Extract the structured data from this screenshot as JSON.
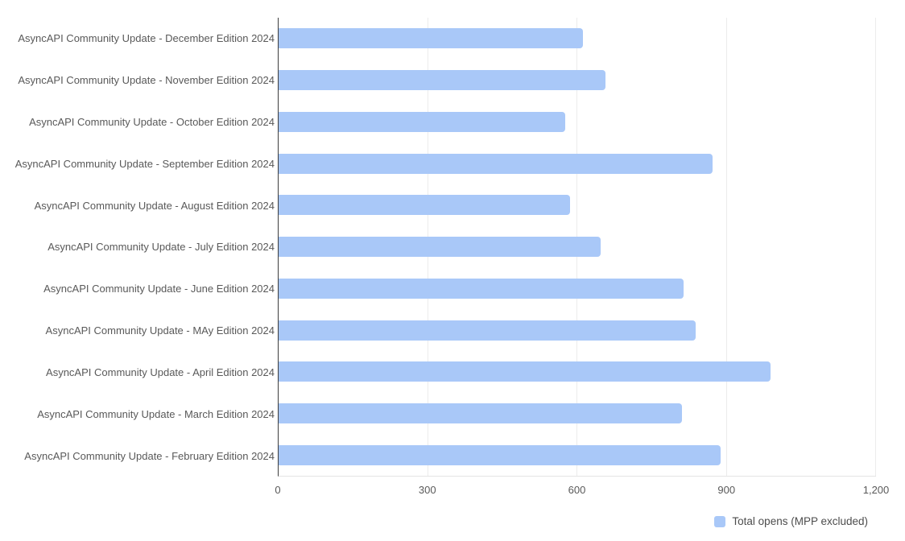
{
  "chart_data": {
    "type": "bar",
    "orientation": "horizontal",
    "title": "",
    "xlabel": "",
    "ylabel": "",
    "categories": [
      "AsyncAPI Community Update - December Edition 2024",
      "AsyncAPI Community Update - November Edition 2024",
      "AsyncAPI Community Update - October Edition 2024",
      "AsyncAPI Community Update - September Edition 2024",
      "AsyncAPI Community Update - August Edition 2024",
      "AsyncAPI Community Update - July Edition 2024",
      "AsyncAPI Community Update - June Edition 2024",
      "AsyncAPI Community Update - MAy Edition 2024",
      "AsyncAPI Community Update - April Edition 2024",
      "AsyncAPI Community Update - March Edition 2024",
      "AsyncAPI Community Update - February Edition 2024"
    ],
    "series": [
      {
        "name": "Total opens (MPP excluded)",
        "values": [
          612,
          657,
          576,
          872,
          585,
          647,
          813,
          838,
          988,
          810,
          888
        ]
      }
    ],
    "xlim": [
      0,
      1200
    ],
    "x_ticks": [
      "0",
      "300",
      "600",
      "900",
      "1,200"
    ],
    "grid": "vertical-only",
    "legend": {
      "position": "bottom-right",
      "items": [
        {
          "label": "Total opens (MPP excluded)",
          "color": "#A9C8F8"
        }
      ]
    }
  },
  "colors": {
    "background": "#ffffff",
    "bar": "#A9C8F8",
    "axis_line": "#3d3d3d",
    "gridline": "#ececec",
    "label_text": "#595959",
    "tick_text": "#595959",
    "legend_text": "#4d4d4d"
  }
}
